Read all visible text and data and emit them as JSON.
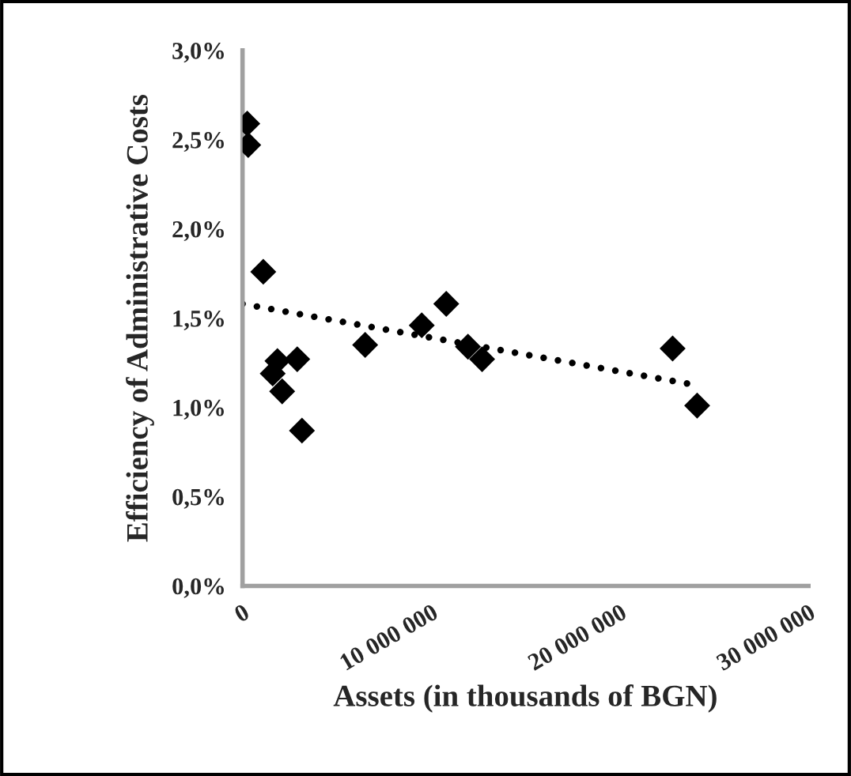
{
  "chart_data": {
    "type": "scatter",
    "xlabel": "Assets (in thousands of BGN)",
    "ylabel": "Efficiency of Administrative Costs",
    "marker": "diamond",
    "grid": false,
    "legend": false,
    "xlim": [
      0,
      30000000
    ],
    "xticks": [
      0,
      {
        "value": 10000000,
        "label": "10 000 000"
      },
      {
        "value": 20000000,
        "label": "20 000 000"
      },
      {
        "value": 30000000,
        "label": "30 000 000"
      }
    ],
    "ylim": [
      0,
      3.0
    ],
    "yticks": [
      {
        "value": 0,
        "label": "0,0%"
      },
      {
        "value": 0.5,
        "label": "0,5%"
      },
      {
        "value": 1.0,
        "label": "1,0%"
      },
      {
        "value": 1.5,
        "label": "1,5%"
      },
      {
        "value": 2.0,
        "label": "2,0%"
      },
      {
        "value": 2.5,
        "label": "2,5%"
      },
      {
        "value": 3.0,
        "label": "3,0%"
      }
    ],
    "series": [
      {
        "color": "#000000",
        "x": [
          250000,
          300000,
          1100000,
          1850000,
          1600000,
          2100000,
          2900000,
          3150000,
          6500000,
          9500000,
          10800000,
          11950000,
          12700000,
          22800000,
          24100000
        ],
        "values": [
          2.59,
          2.47,
          1.76,
          1.26,
          1.19,
          1.09,
          1.27,
          0.87,
          1.35,
          1.46,
          1.58,
          1.34,
          1.27,
          1.33,
          1.01
        ]
      },
      {
        "type": "line",
        "color": "#000000",
        "line_style": "dotted",
        "marker": "none",
        "x": [
          0,
          24300000
        ],
        "values": [
          1.58,
          1.12
        ]
      }
    ]
  }
}
